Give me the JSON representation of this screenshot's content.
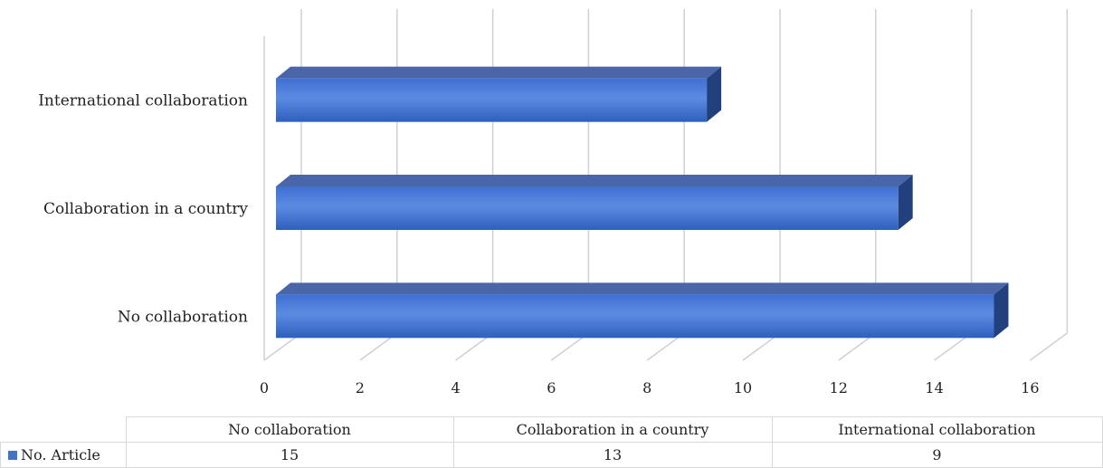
{
  "chart_data": {
    "type": "bar",
    "orientation": "horizontal",
    "style": "3d",
    "categories": [
      "No collaboration",
      "Collaboration in a country",
      "International collaboration"
    ],
    "series": [
      {
        "name": "No. Article",
        "values": [
          15,
          13,
          9
        ],
        "color": "#4472C4"
      }
    ],
    "xlim": [
      0,
      16
    ],
    "ticks": [
      "0",
      "2",
      "4",
      "6",
      "8",
      "10",
      "12",
      "14",
      "16"
    ],
    "grid": true,
    "legend": "data-table"
  },
  "table": {
    "columns": [
      "No collaboration",
      "Collaboration in a country",
      "International collaboration"
    ],
    "rows": [
      {
        "label": "No. Article",
        "cells": [
          "15",
          "13",
          "9"
        ]
      }
    ]
  }
}
